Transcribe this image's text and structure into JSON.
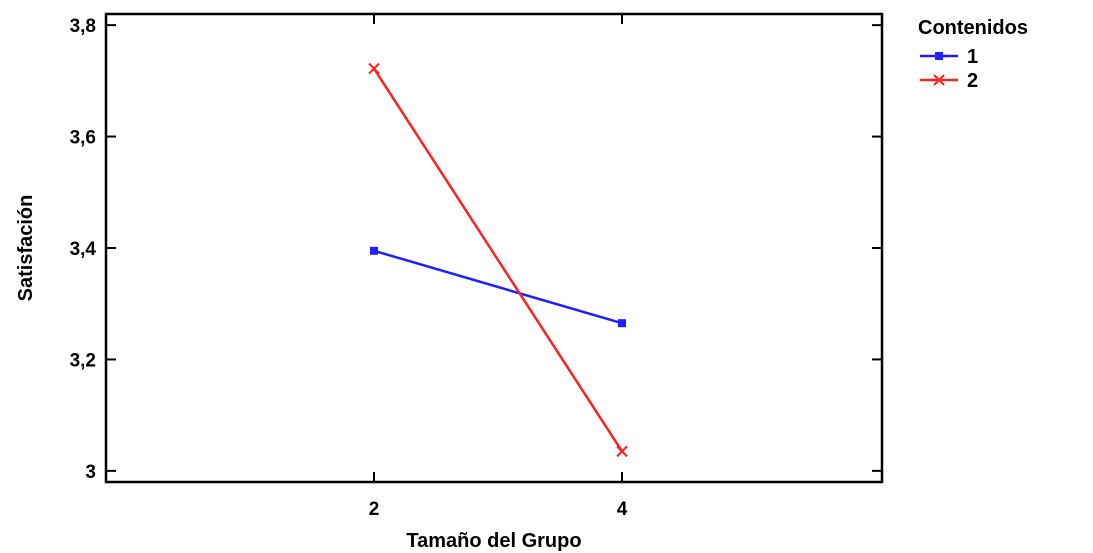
{
  "chart_data": {
    "type": "line",
    "xlabel": "Tamaño del Grupo",
    "ylabel": "Satisfación",
    "categories": [
      "2",
      "4"
    ],
    "x_tick_labels": [
      "2",
      "4"
    ],
    "y_tick_labels": [
      "3",
      "3,2",
      "3,4",
      "3,6",
      "3,8"
    ],
    "y_ticks": [
      3.0,
      3.2,
      3.4,
      3.6,
      3.8
    ],
    "ylim": [
      2.98,
      3.82
    ],
    "grid": false,
    "legend_title": "Contenidos",
    "legend_position": "top-right, outside",
    "series": [
      {
        "name": "1",
        "values": [
          3.395,
          3.265
        ],
        "color": "#1f1fff",
        "marker": "square"
      },
      {
        "name": "2",
        "values": [
          3.722,
          3.035
        ],
        "color": "#ff2020",
        "marker": "x"
      }
    ]
  }
}
